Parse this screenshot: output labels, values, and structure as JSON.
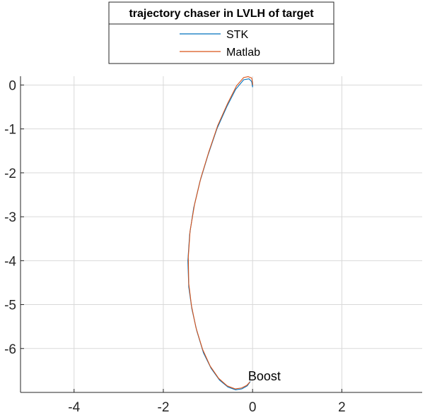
{
  "chart_data": {
    "type": "line",
    "title": "",
    "xlabel": "",
    "ylabel": "",
    "xlim": [
      -5.2,
      3.8
    ],
    "ylim": [
      -7.0,
      0.2
    ],
    "grid": true,
    "x_ticks": [
      -4,
      -2,
      0,
      2
    ],
    "x_tick_labels": [
      "-4",
      "-2",
      "0",
      "2"
    ],
    "y_ticks": [
      0,
      -1,
      -2,
      -3,
      -4,
      -5,
      -6
    ],
    "y_tick_labels": [
      "0",
      "-1",
      "-2",
      "-3",
      "-4",
      "-5",
      "-6"
    ],
    "legend": {
      "title": "trajectory chaser in LVLH of target",
      "placement": "top-center-outside"
    },
    "annotations": [
      {
        "text": "Boost",
        "x": -0.1,
        "y": -6.65
      }
    ],
    "series": [
      {
        "name": "STK",
        "color": "#0072BD",
        "x": [
          0.0,
          0.0,
          -0.02,
          -0.08,
          -0.2,
          -0.38,
          -0.58,
          -0.8,
          -1.0,
          -1.18,
          -1.32,
          -1.41,
          -1.45,
          -1.43,
          -1.36,
          -1.25,
          -1.1,
          -0.93,
          -0.74,
          -0.55,
          -0.38,
          -0.24,
          -0.12,
          -0.05
        ],
        "y": [
          0.0,
          -0.05,
          0.08,
          0.14,
          0.12,
          -0.1,
          -0.5,
          -1.0,
          -1.6,
          -2.2,
          -2.8,
          -3.4,
          -4.0,
          -4.6,
          -5.1,
          -5.6,
          -6.1,
          -6.45,
          -6.72,
          -6.88,
          -6.94,
          -6.92,
          -6.85,
          -6.75
        ]
      },
      {
        "name": "Matlab",
        "color": "#D95319",
        "x": [
          0.0,
          0.0,
          -0.02,
          -0.1,
          -0.2,
          -0.36,
          -0.56,
          -0.78,
          -0.98,
          -1.16,
          -1.3,
          -1.4,
          -1.44,
          -1.43,
          -1.37,
          -1.27,
          -1.12,
          -0.95,
          -0.76,
          -0.57,
          -0.39,
          -0.25,
          -0.13,
          -0.06
        ],
        "y": [
          0.0,
          0.05,
          0.16,
          0.19,
          0.17,
          -0.02,
          -0.42,
          -0.92,
          -1.52,
          -2.12,
          -2.72,
          -3.32,
          -3.92,
          -4.52,
          -5.02,
          -5.52,
          -6.02,
          -6.4,
          -6.68,
          -6.85,
          -6.92,
          -6.9,
          -6.84,
          -6.76
        ]
      }
    ]
  }
}
